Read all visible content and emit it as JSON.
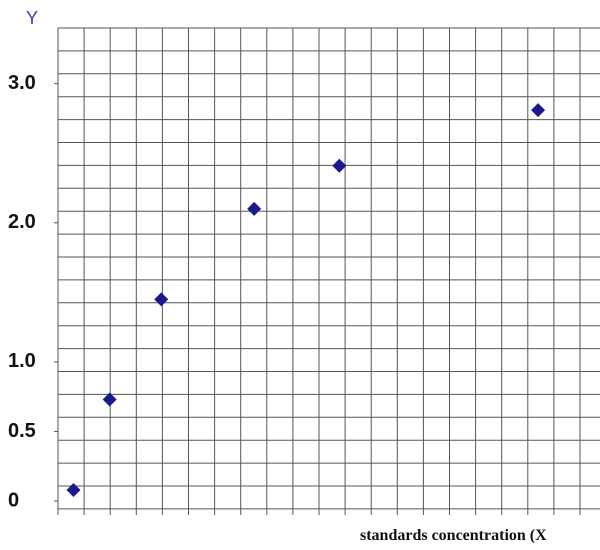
{
  "chart_data": {
    "type": "scatter",
    "y_label": "Y",
    "x_label": "standards concentration (X",
    "x": [
      0.6,
      2.0,
      4.0,
      7.6,
      10.9,
      18.6
    ],
    "values": [
      0.08,
      0.73,
      1.45,
      2.1,
      2.41,
      2.81
    ],
    "color": "#1a1a8c",
    "xlim": [
      0,
      21
    ],
    "ylim": [
      -0.1,
      3.4
    ],
    "yticks": [
      {
        "value": 0,
        "label": "0"
      },
      {
        "value": 0.5,
        "label": "0.5"
      },
      {
        "value": 1,
        "label": "1.0"
      },
      {
        "value": 2,
        "label": "2.0"
      },
      {
        "value": 3,
        "label": "3.0"
      }
    ],
    "grid": true
  }
}
